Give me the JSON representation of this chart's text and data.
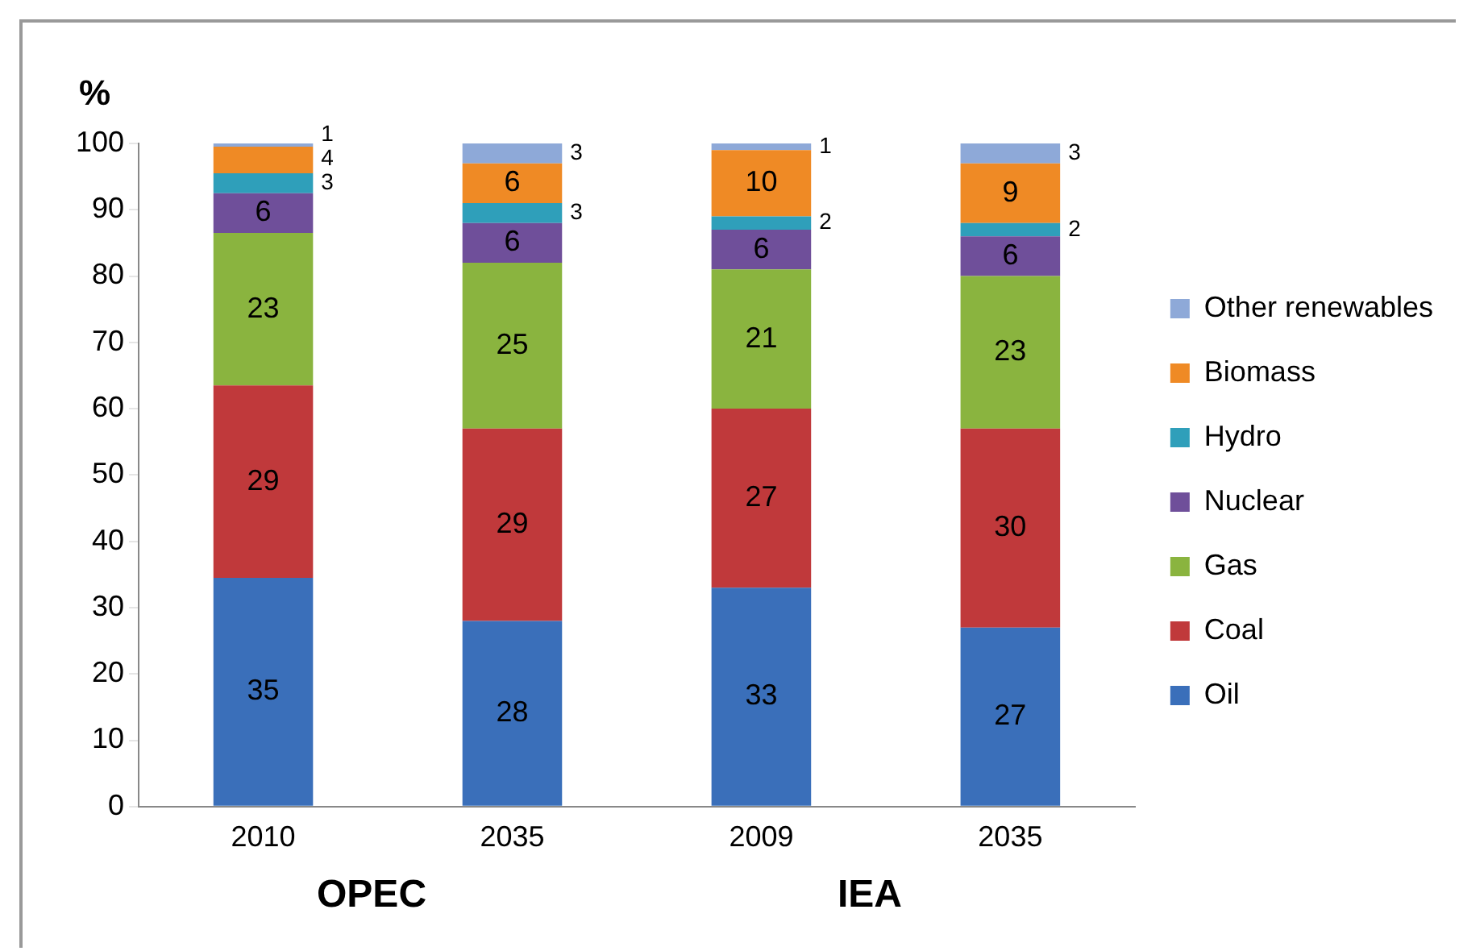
{
  "chart_data": {
    "type": "bar",
    "stacked": true,
    "ylabel": "%",
    "categories": [
      "2010",
      "2035",
      "2009",
      "2035"
    ],
    "series": [
      {
        "name": "Oil",
        "color": "#3a6fba",
        "values": [
          34.5,
          28,
          33,
          27
        ],
        "value_labels": [
          "35",
          "28",
          "33",
          "27"
        ]
      },
      {
        "name": "Coal",
        "color": "#c0393b",
        "values": [
          29,
          29,
          27,
          30
        ],
        "value_labels": [
          "29",
          "29",
          "27",
          "30"
        ]
      },
      {
        "name": "Gas",
        "color": "#8ab43f",
        "values": [
          23,
          25,
          21,
          23
        ],
        "value_labels": [
          "23",
          "25",
          "21",
          "23"
        ]
      },
      {
        "name": "Nuclear",
        "color": "#6f4f9a",
        "values": [
          6,
          6,
          6,
          6
        ],
        "value_labels": [
          "6",
          "6",
          "6",
          "6"
        ]
      },
      {
        "name": "Hydro",
        "color": "#2f9fba",
        "values": [
          3,
          3,
          2,
          2
        ],
        "value_labels": [
          "3",
          "3",
          "2",
          "2"
        ]
      },
      {
        "name": "Biomass",
        "color": "#ef8a25",
        "values": [
          4,
          6,
          10,
          9
        ],
        "value_labels": [
          "4",
          "6",
          "10",
          "9"
        ]
      },
      {
        "name": "Other renewables",
        "color": "#8ea9d8",
        "values": [
          0.5,
          3,
          1,
          3
        ],
        "value_labels": [
          "1",
          "3",
          "1",
          "3"
        ]
      }
    ],
    "ylim": [
      0,
      100
    ],
    "yticks": [
      0,
      10,
      20,
      30,
      40,
      50,
      60,
      70,
      80,
      90,
      100
    ],
    "grid": false,
    "legend": "right",
    "annotations": [
      "OPEC",
      "IEA"
    ]
  }
}
